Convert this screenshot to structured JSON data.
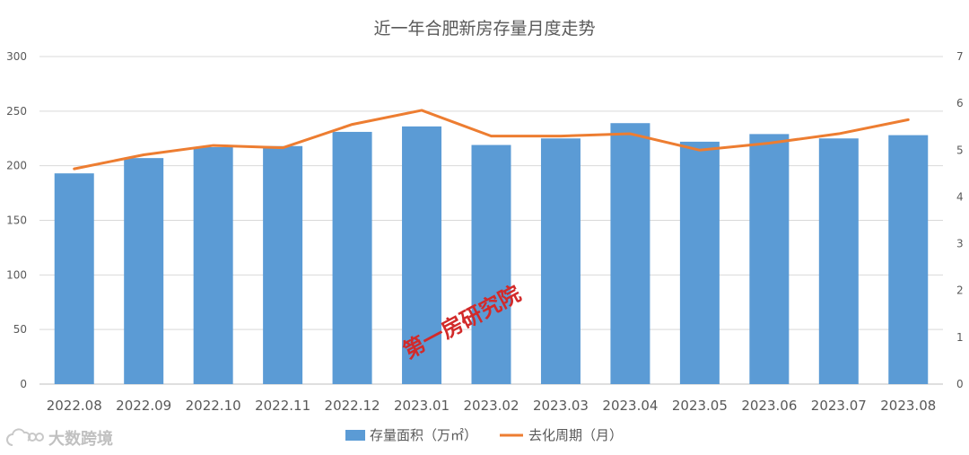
{
  "chart_data": {
    "type": "bar+line",
    "title": "近一年合肥新房存量月度走势",
    "categories": [
      "2022.08",
      "2022.09",
      "2022.10",
      "2022.11",
      "2022.12",
      "2023.01",
      "2023.02",
      "2023.03",
      "2023.04",
      "2023.05",
      "2023.06",
      "2023.07",
      "2023.08"
    ],
    "series": [
      {
        "name": "存量面积（万㎡）",
        "type": "bar",
        "axis": "left",
        "color": "#5b9bd5",
        "values": [
          193,
          207,
          217,
          218,
          231,
          236,
          219,
          225,
          239,
          222,
          229,
          225,
          228
        ]
      },
      {
        "name": "去化周期（月）",
        "type": "line",
        "axis": "right",
        "color": "#ed7d31",
        "values": [
          4.6,
          4.9,
          5.1,
          5.05,
          5.55,
          5.85,
          5.3,
          5.3,
          5.35,
          5.0,
          5.15,
          5.35,
          5.65
        ]
      }
    ],
    "y_left": {
      "min": 0,
      "max": 300,
      "ticks": [
        0,
        50,
        100,
        150,
        200,
        250,
        300
      ]
    },
    "y_right": {
      "min": 0,
      "max": 7,
      "ticks": [
        0,
        1,
        2,
        3,
        4,
        5,
        6,
        7
      ]
    },
    "grid": true,
    "legend_position": "bottom"
  },
  "watermark": {
    "text": "大数跨境",
    "logo_icon": "cloud-link-icon"
  },
  "stamp_text": "第一房研究院"
}
